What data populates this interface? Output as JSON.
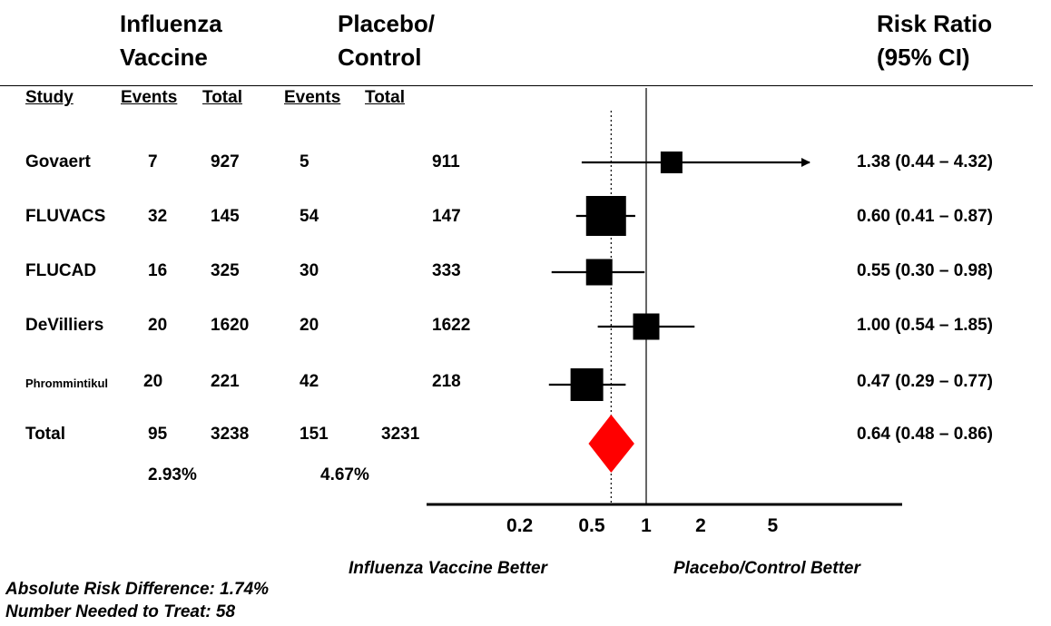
{
  "header": {
    "vaccine_line1": "Influenza",
    "vaccine_line2": "Vaccine",
    "control_line1": "Placebo/",
    "control_line2": "Control",
    "rr_line1": "Risk Ratio",
    "rr_line2": "(95% CI)"
  },
  "columns": {
    "study": "Study",
    "vac_events": "Events",
    "vac_total": "Total",
    "ctl_events": "Events",
    "ctl_total": "Total"
  },
  "rows": [
    {
      "study": "Govaert",
      "vac_events": "7",
      "vac_total": "927",
      "ctl_events": "5",
      "ctl_total": "911",
      "rr_text": "1.38 (0.44 – 4.32)"
    },
    {
      "study": "FLUVACS",
      "vac_events": "32",
      "vac_total": "145",
      "ctl_events": "54",
      "ctl_total": "147",
      "rr_text": "0.60 (0.41 – 0.87)"
    },
    {
      "study": "FLUCAD",
      "vac_events": "16",
      "vac_total": "325",
      "ctl_events": "30",
      "ctl_total": "333",
      "rr_text": "0.55 (0.30 – 0.98)"
    },
    {
      "study": "DeVilliers",
      "vac_events": "20",
      "vac_total": "1620",
      "ctl_events": "20",
      "ctl_total": "1622",
      "rr_text": "1.00 (0.54 – 1.85)"
    },
    {
      "study": "Phrommintikul",
      "vac_events": "20",
      "vac_total": "221",
      "ctl_events": "42",
      "ctl_total": "218",
      "rr_text": "0.47 (0.29 – 0.77)"
    }
  ],
  "total": {
    "label": "Total",
    "vac_events": "95",
    "vac_total": "3238",
    "ctl_events": "151",
    "ctl_total": "3231",
    "rr_text": "0.64 (0.48 – 0.86)",
    "vac_pct": "2.93%",
    "ctl_pct": "4.67%"
  },
  "footer": {
    "favors_left": "Influenza Vaccine Better",
    "favors_right": "Placebo/Control Better",
    "ard": "Absolute Risk Difference: 1.74%",
    "nnt": "Number Needed to Treat: 58"
  },
  "colors": {
    "marker": "#000000",
    "pooled_diamond": "#ff0000",
    "line": "#000000"
  },
  "chart_data": {
    "type": "forest",
    "scale": "log",
    "xlim": [
      0.2,
      5
    ],
    "xticks": [
      0.2,
      0.5,
      1,
      2,
      5
    ],
    "xtick_labels": [
      "0.2",
      "0.5",
      "1",
      "2",
      "5"
    ],
    "null_line": 1,
    "pooled_reference_line": 0.64,
    "studies": [
      {
        "name": "Govaert",
        "rr": 1.38,
        "ci": [
          0.44,
          4.32
        ],
        "weight": 1.0,
        "arrow_right": true
      },
      {
        "name": "FLUVACS",
        "rr": 0.6,
        "ci": [
          0.41,
          0.87
        ],
        "weight": 3.0
      },
      {
        "name": "FLUCAD",
        "rr": 0.55,
        "ci": [
          0.3,
          0.98
        ],
        "weight": 1.5
      },
      {
        "name": "DeVilliers",
        "rr": 1.0,
        "ci": [
          0.54,
          1.85
        ],
        "weight": 1.5
      },
      {
        "name": "Phrommintikul",
        "rr": 0.47,
        "ci": [
          0.29,
          0.77
        ],
        "weight": 2.2
      }
    ],
    "pooled": {
      "name": "Total",
      "rr": 0.64,
      "ci": [
        0.48,
        0.86
      ]
    }
  }
}
